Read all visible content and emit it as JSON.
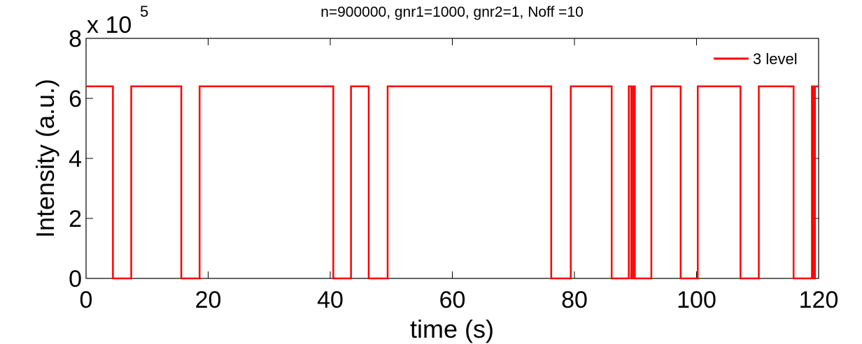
{
  "chart_data": {
    "type": "line",
    "title": "n=900000, gnr1=1000, gnr2=1, Noff =10",
    "xlabel": "time (s)",
    "ylabel": "Intensity (a.u.)",
    "xlim": [
      0,
      120
    ],
    "ylim": [
      0,
      800000
    ],
    "y_multiplier_base": "x 10",
    "y_multiplier_exponent": "5",
    "xticks": [
      0,
      20,
      40,
      60,
      80,
      100,
      120
    ],
    "yticks": [
      0,
      2,
      4,
      6,
      8
    ],
    "grid": false,
    "legend_position": "top-right",
    "series": [
      {
        "name": "3 level",
        "color": "#ff0000",
        "on_level": 640000,
        "off_level": 0,
        "on_segments": [
          [
            0,
            4.4
          ],
          [
            7.4,
            15.6
          ],
          [
            18.6,
            40.5
          ],
          [
            43.4,
            46.3
          ],
          [
            49.4,
            76.2
          ],
          [
            79.4,
            86.1
          ],
          [
            88.9,
            89.3
          ],
          [
            89.6,
            89.9
          ],
          [
            92.6,
            97.4
          ],
          [
            100.2,
            107.2
          ],
          [
            110.2,
            115.9
          ],
          [
            118.9,
            119.1
          ],
          [
            119.4,
            120
          ]
        ]
      }
    ]
  }
}
